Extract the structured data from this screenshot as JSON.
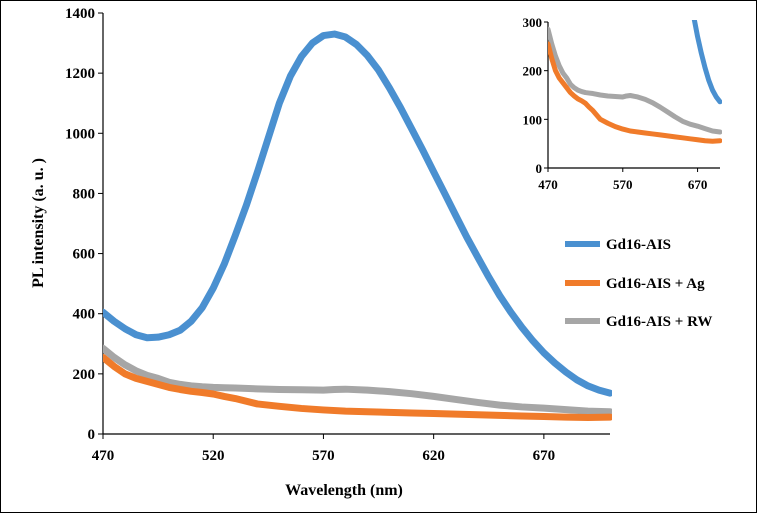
{
  "chart_data": {
    "type": "line",
    "xlabel": "Wavelength (nm)",
    "ylabel": "PL intensity (a. u. )",
    "xlim": [
      470,
      700
    ],
    "ylim": [
      0,
      1400
    ],
    "x_ticks": [
      "470",
      "520",
      "570",
      "620",
      "670"
    ],
    "y_ticks": [
      "0",
      "200",
      "400",
      "600",
      "800",
      "1000",
      "1200",
      "1400"
    ],
    "legend_position": "right-middle",
    "series": [
      {
        "name": "Gd16-AIS",
        "color": "#4a90d0",
        "x": [
          470,
          475,
          480,
          485,
          490,
          495,
          500,
          505,
          510,
          515,
          520,
          525,
          530,
          535,
          540,
          545,
          550,
          555,
          560,
          565,
          570,
          575,
          580,
          585,
          590,
          595,
          600,
          605,
          610,
          615,
          620,
          625,
          630,
          635,
          640,
          645,
          650,
          655,
          660,
          665,
          670,
          675,
          680,
          685,
          690,
          695,
          700
        ],
        "values": [
          405,
          375,
          350,
          330,
          320,
          322,
          330,
          345,
          375,
          420,
          485,
          565,
          660,
          760,
          870,
          985,
          1100,
          1190,
          1255,
          1300,
          1325,
          1330,
          1320,
          1295,
          1258,
          1210,
          1150,
          1085,
          1015,
          945,
          872,
          800,
          727,
          655,
          588,
          522,
          460,
          405,
          355,
          310,
          270,
          236,
          206,
          180,
          160,
          146,
          136
        ]
      },
      {
        "name": "Gd16-AIS + Ag",
        "color": "#f07b2a",
        "x": [
          470,
          475,
          480,
          485,
          490,
          495,
          500,
          505,
          510,
          515,
          520,
          525,
          530,
          540,
          550,
          560,
          570,
          580,
          590,
          600,
          610,
          620,
          630,
          640,
          650,
          660,
          670,
          680,
          690,
          700
        ],
        "values": [
          255,
          225,
          200,
          185,
          175,
          165,
          155,
          148,
          142,
          138,
          133,
          125,
          118,
          100,
          92,
          85,
          80,
          76,
          74,
          72,
          70,
          68,
          66,
          64,
          62,
          60,
          58,
          56,
          55,
          56
        ]
      },
      {
        "name": "Gd16-AIS + RW",
        "color": "#a6a6a6",
        "x": [
          470,
          475,
          480,
          485,
          490,
          495,
          500,
          505,
          510,
          515,
          520,
          525,
          530,
          540,
          550,
          560,
          570,
          575,
          580,
          590,
          600,
          610,
          620,
          630,
          640,
          650,
          660,
          670,
          680,
          690,
          700
        ],
        "values": [
          285,
          255,
          230,
          210,
          195,
          185,
          172,
          165,
          160,
          157,
          155,
          154,
          153,
          150,
          148,
          147,
          146,
          148,
          149,
          146,
          141,
          134,
          125,
          115,
          105,
          96,
          90,
          86,
          81,
          76,
          74
        ]
      }
    ],
    "inset": {
      "xlim": [
        470,
        700
      ],
      "ylim": [
        0,
        300
      ],
      "x_ticks": [
        "470",
        "570",
        "670"
      ],
      "y_ticks": [
        "0",
        "100",
        "200",
        "300"
      ]
    }
  }
}
